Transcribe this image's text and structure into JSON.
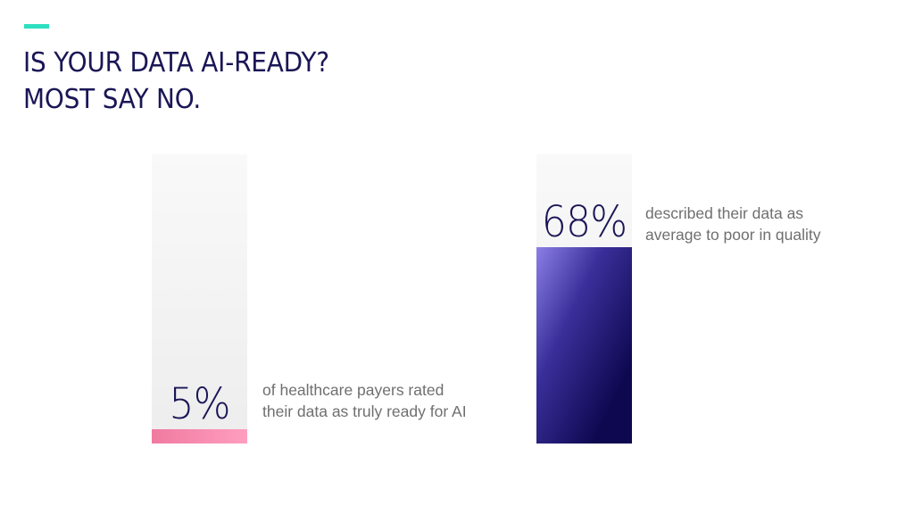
{
  "title": {
    "line1": "IS YOUR DATA AI-READY?",
    "line2": "MOST SAY NO."
  },
  "colors": {
    "accent": "#2ee0c0",
    "title": "#1a1656",
    "track": "#f0f0f0",
    "stat1_fill_top": "#f07aa0",
    "stat1_fill_bottom": "#ff9ec0",
    "stat2_fill_top": "#8b7fe6",
    "stat2_fill_bottom": "#0e0850"
  },
  "chart_data": {
    "type": "bar",
    "categories": [
      "5%",
      "68%"
    ],
    "values": [
      5,
      68
    ],
    "ylim": [
      0,
      100
    ],
    "title": "",
    "xlabel": "",
    "ylabel": "",
    "stats": [
      {
        "value": 5,
        "label": "5%",
        "description_line1": "of healthcare payers rated",
        "description_line2": "their data as truly ready for AI"
      },
      {
        "value": 68,
        "label": "68%",
        "description_line1": "described their data as",
        "description_line2": "average to poor in quality"
      }
    ]
  }
}
